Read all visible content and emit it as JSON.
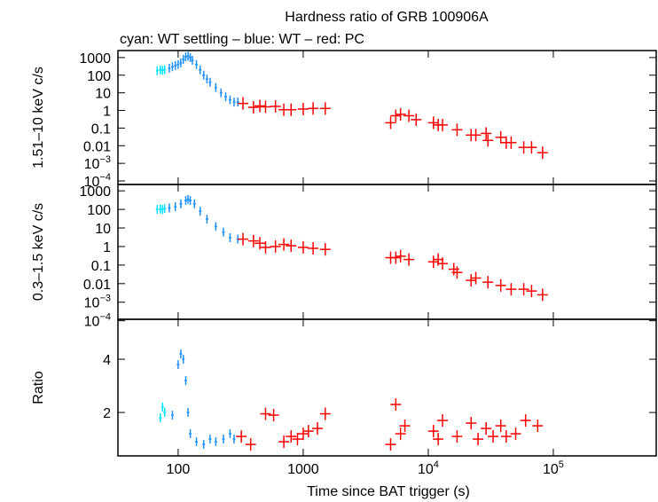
{
  "chart_data": [
    {
      "type": "scatter",
      "title": "Hardness ratio of GRB 100906A",
      "subtitle": "cyan: WT settling – blue: WT – red: PC",
      "ylabel": "1.51–10 keV c/s",
      "xlog": true,
      "ylog": true,
      "xlim": [
        33,
        665000
      ],
      "ylim": [
        6.3e-05,
        2500
      ],
      "yticks": [
        1000,
        100,
        10,
        1,
        0.1,
        0.01,
        {
          "value": 0.001,
          "label": "10",
          "power": "−3"
        },
        {
          "value": 0.0001,
          "label": "10",
          "power": "−4"
        }
      ],
      "series": [
        {
          "name": "WT settling",
          "color": "#00e5ff",
          "x": [
            68,
            72,
            75,
            78
          ],
          "values": [
            180,
            200,
            190,
            210
          ]
        },
        {
          "name": "WT",
          "color": "#1e90ff",
          "x": [
            85,
            90,
            95,
            100,
            105,
            110,
            115,
            120,
            125,
            130,
            140,
            150,
            160,
            170,
            180,
            200,
            220,
            240,
            260,
            280,
            300
          ],
          "values": [
            250,
            300,
            350,
            400,
            500,
            800,
            1100,
            1200,
            1000,
            700,
            400,
            200,
            100,
            60,
            40,
            20,
            10,
            6,
            4,
            3,
            3
          ]
        },
        {
          "name": "PC",
          "color": "#ff0000",
          "x": [
            330,
            400,
            450,
            500,
            600,
            700,
            800,
            1000,
            1200,
            1500,
            5000,
            5500,
            6000,
            7000,
            8000,
            11000,
            12000,
            13000,
            17000,
            22000,
            24000,
            29000,
            30000,
            38000,
            42000,
            46000,
            58000,
            67000,
            82000
          ],
          "values": [
            2.5,
            1.5,
            1.8,
            1.6,
            1.7,
            1.1,
            1.1,
            1.2,
            1.3,
            1.3,
            0.2,
            0.5,
            0.6,
            0.5,
            0.3,
            0.2,
            0.15,
            0.15,
            0.08,
            0.04,
            0.04,
            0.05,
            0.02,
            0.03,
            0.015,
            0.015,
            0.008,
            0.008,
            0.004
          ]
        }
      ]
    },
    {
      "type": "scatter",
      "ylabel": "0.3–1.5 keV c/s",
      "xlog": true,
      "ylog": true,
      "xlim": [
        33,
        665000
      ],
      "ylim": [
        0.00012,
        2200
      ],
      "yticks": [
        1000,
        100,
        10,
        1,
        0.1,
        0.01,
        {
          "value": 0.001,
          "label": "10",
          "power": "−3"
        },
        {
          "value": 0.0001,
          "label": "10",
          "power": "−4"
        }
      ],
      "series": [
        {
          "name": "WT settling",
          "color": "#00e5ff",
          "x": [
            68,
            72,
            75,
            78
          ],
          "values": [
            100,
            105,
            100,
            110
          ]
        },
        {
          "name": "WT",
          "color": "#1e90ff",
          "x": [
            85,
            95,
            105,
            115,
            120,
            125,
            135,
            150,
            170,
            200,
            230,
            260,
            300
          ],
          "values": [
            120,
            140,
            200,
            300,
            350,
            300,
            200,
            80,
            30,
            12,
            6,
            3,
            2.5
          ]
        },
        {
          "name": "PC",
          "color": "#ff0000",
          "x": [
            330,
            400,
            450,
            500,
            600,
            700,
            800,
            1000,
            1200,
            1500,
            5000,
            5500,
            6000,
            7000,
            11000,
            12000,
            13000,
            16000,
            17000,
            22000,
            24000,
            30000,
            38000,
            46000,
            58000,
            67000,
            82000
          ],
          "values": [
            2.5,
            2,
            1.5,
            0.9,
            1,
            1.3,
            1.1,
            0.9,
            0.8,
            0.7,
            0.25,
            0.25,
            0.3,
            0.2,
            0.15,
            0.2,
            0.12,
            0.06,
            0.04,
            0.015,
            0.02,
            0.012,
            0.008,
            0.005,
            0.005,
            0.004,
            0.0025
          ]
        }
      ]
    },
    {
      "type": "scatter",
      "ylabel": "Ratio",
      "xlabel": "Time since BAT trigger (s)",
      "xlog": true,
      "ylog": false,
      "xlim": [
        33,
        665000
      ],
      "ylim": [
        0.37,
        5.5
      ],
      "yticks": [
        2,
        4
      ],
      "xticks": [
        100,
        1000,
        {
          "value": 10000,
          "label": "10",
          "power": "4"
        },
        {
          "value": 100000,
          "label": "10",
          "power": "5"
        }
      ],
      "series": [
        {
          "name": "WT settling",
          "color": "#00e5ff",
          "x": [
            72,
            75,
            78
          ],
          "values": [
            1.8,
            2.2,
            2.0
          ]
        },
        {
          "name": "WT",
          "color": "#1e90ff",
          "x": [
            90,
            100,
            105,
            110,
            115,
            120,
            125,
            140,
            160,
            180,
            200,
            230,
            260,
            280
          ],
          "values": [
            1.9,
            3.8,
            4.2,
            4.0,
            3.2,
            2.0,
            1.2,
            0.9,
            0.8,
            1.0,
            0.9,
            1.0,
            1.2,
            1.0
          ]
        },
        {
          "name": "PC",
          "color": "#ff0000",
          "x": [
            320,
            380,
            500,
            580,
            700,
            800,
            900,
            1000,
            1100,
            1300,
            1500,
            5000,
            5500,
            6000,
            6500,
            11000,
            12000,
            13000,
            17000,
            22000,
            25000,
            29000,
            33000,
            38000,
            42000,
            50000,
            60000,
            75000
          ],
          "values": [
            1.1,
            0.8,
            1.95,
            1.9,
            0.9,
            1.1,
            1.0,
            1.2,
            1.3,
            1.4,
            1.95,
            0.8,
            2.3,
            1.2,
            1.5,
            1.3,
            1.0,
            1.7,
            1.1,
            1.6,
            1.0,
            1.4,
            1.1,
            1.5,
            1.1,
            1.2,
            1.7,
            1.5
          ]
        }
      ]
    }
  ]
}
